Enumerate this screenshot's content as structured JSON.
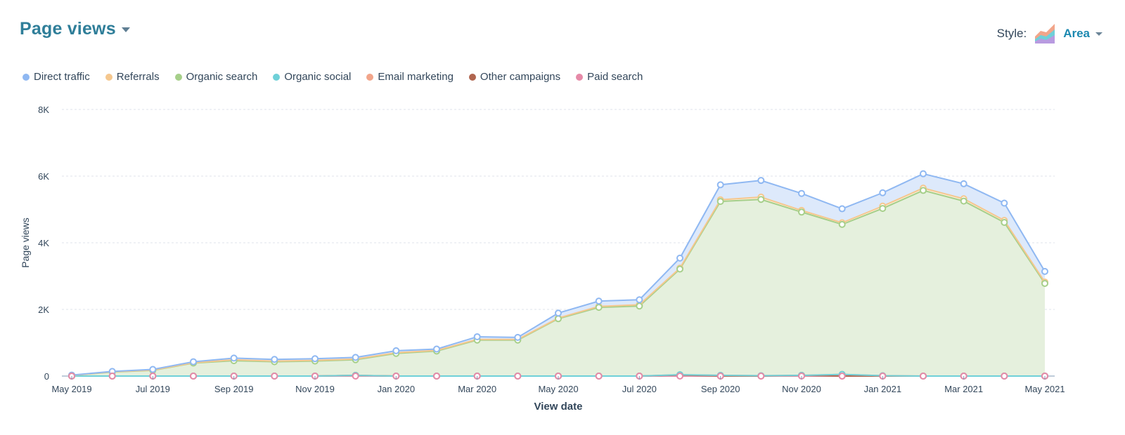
{
  "header": {
    "title": "Page views",
    "style_label": "Style:",
    "style_value": "Area"
  },
  "colors": {
    "direct": "#8fb8f2",
    "referrals": "#f5c78e",
    "organic_search": "#a6cf8a",
    "organic_social": "#6fd0d8",
    "email": "#f2a58a",
    "other_campaigns": "#b0654f",
    "paid_search": "#e68aa8",
    "title": "#2f7e99",
    "link": "#1b88b0"
  },
  "legend": [
    {
      "label": "Direct traffic",
      "color": "#8fb8f2"
    },
    {
      "label": "Referrals",
      "color": "#f5c78e"
    },
    {
      "label": "Organic search",
      "color": "#a6cf8a"
    },
    {
      "label": "Organic social",
      "color": "#6fd0d8"
    },
    {
      "label": "Email marketing",
      "color": "#f2a58a"
    },
    {
      "label": "Other campaigns",
      "color": "#b0654f"
    },
    {
      "label": "Paid search",
      "color": "#e68aa8"
    }
  ],
  "chart_data": {
    "type": "area",
    "stacked": true,
    "xlabel": "View date",
    "ylabel": "Page views",
    "ylim": [
      0,
      8000
    ],
    "yticks": [
      0,
      2000,
      4000,
      6000,
      8000
    ],
    "ytick_labels": [
      "0",
      "2K",
      "4K",
      "6K",
      "8K"
    ],
    "grid": true,
    "legend_position": "top-left",
    "x": [
      "May 2019",
      "Jun 2019",
      "Jul 2019",
      "Aug 2019",
      "Sep 2019",
      "Oct 2019",
      "Nov 2019",
      "Dec 2019",
      "Jan 2020",
      "Feb 2020",
      "Mar 2020",
      "Apr 2020",
      "May 2020",
      "Jun 2020",
      "Jul 2020",
      "Aug 2020",
      "Sep 2020",
      "Oct 2020",
      "Nov 2020",
      "Dec 2020",
      "Jan 2021",
      "Feb 2021",
      "Mar 2021",
      "Apr 2021",
      "May 2021"
    ],
    "x_tick_labels": [
      {
        "index": 0,
        "label": "May 2019"
      },
      {
        "index": 2,
        "label": "Jul 2019"
      },
      {
        "index": 4,
        "label": "Sep 2019"
      },
      {
        "index": 6,
        "label": "Nov 2019"
      },
      {
        "index": 8,
        "label": "Jan 2020"
      },
      {
        "index": 10,
        "label": "Mar 2020"
      },
      {
        "index": 12,
        "label": "May 2020"
      },
      {
        "index": 14,
        "label": "Jul 2020"
      },
      {
        "index": 16,
        "label": "Sep 2020"
      },
      {
        "index": 18,
        "label": "Nov 2020"
      },
      {
        "index": 20,
        "label": "Jan 2021"
      },
      {
        "index": 22,
        "label": "Mar 2021"
      },
      {
        "index": 24,
        "label": "May 2021"
      }
    ],
    "series": [
      {
        "name": "Paid search",
        "color": "#e68aa8",
        "values": [
          0,
          0,
          0,
          0,
          0,
          0,
          0,
          0,
          0,
          0,
          0,
          0,
          0,
          0,
          0,
          0,
          0,
          0,
          0,
          0,
          0,
          0,
          0,
          0,
          0
        ]
      },
      {
        "name": "Other campaigns",
        "color": "#b0654f",
        "values": [
          0,
          0,
          0,
          0,
          0,
          0,
          0,
          20,
          0,
          0,
          0,
          0,
          0,
          0,
          0,
          30,
          0,
          0,
          20,
          0,
          0,
          0,
          0,
          0,
          0
        ]
      },
      {
        "name": "Email marketing",
        "color": "#f2a58a",
        "values": [
          0,
          0,
          0,
          0,
          0,
          0,
          0,
          0,
          0,
          0,
          0,
          0,
          0,
          0,
          0,
          10,
          20,
          10,
          0,
          50,
          10,
          0,
          0,
          0,
          0
        ]
      },
      {
        "name": "Organic social",
        "color": "#6fd0d8",
        "values": [
          0,
          0,
          0,
          0,
          0,
          0,
          0,
          0,
          0,
          0,
          0,
          0,
          0,
          0,
          0,
          0,
          0,
          0,
          0,
          0,
          0,
          0,
          0,
          0,
          0
        ]
      },
      {
        "name": "Organic search",
        "color": "#a6cf8a",
        "values": [
          20,
          120,
          170,
          390,
          460,
          430,
          450,
          470,
          680,
          750,
          1080,
          1080,
          1720,
          2060,
          2100,
          3170,
          5220,
          5290,
          4900,
          4500,
          5020,
          5570,
          5250,
          4610,
          2780
        ]
      },
      {
        "name": "Referrals",
        "color": "#f5c78e",
        "values": [
          0,
          10,
          10,
          10,
          30,
          20,
          20,
          20,
          20,
          20,
          20,
          20,
          20,
          30,
          40,
          30,
          50,
          70,
          50,
          50,
          70,
          70,
          70,
          60,
          40
        ]
      },
      {
        "name": "Direct traffic",
        "color": "#8fb8f2",
        "values": [
          10,
          10,
          20,
          30,
          50,
          50,
          50,
          50,
          60,
          40,
          80,
          60,
          150,
          160,
          150,
          300,
          450,
          500,
          510,
          420,
          400,
          430,
          450,
          520,
          320
        ]
      }
    ]
  }
}
